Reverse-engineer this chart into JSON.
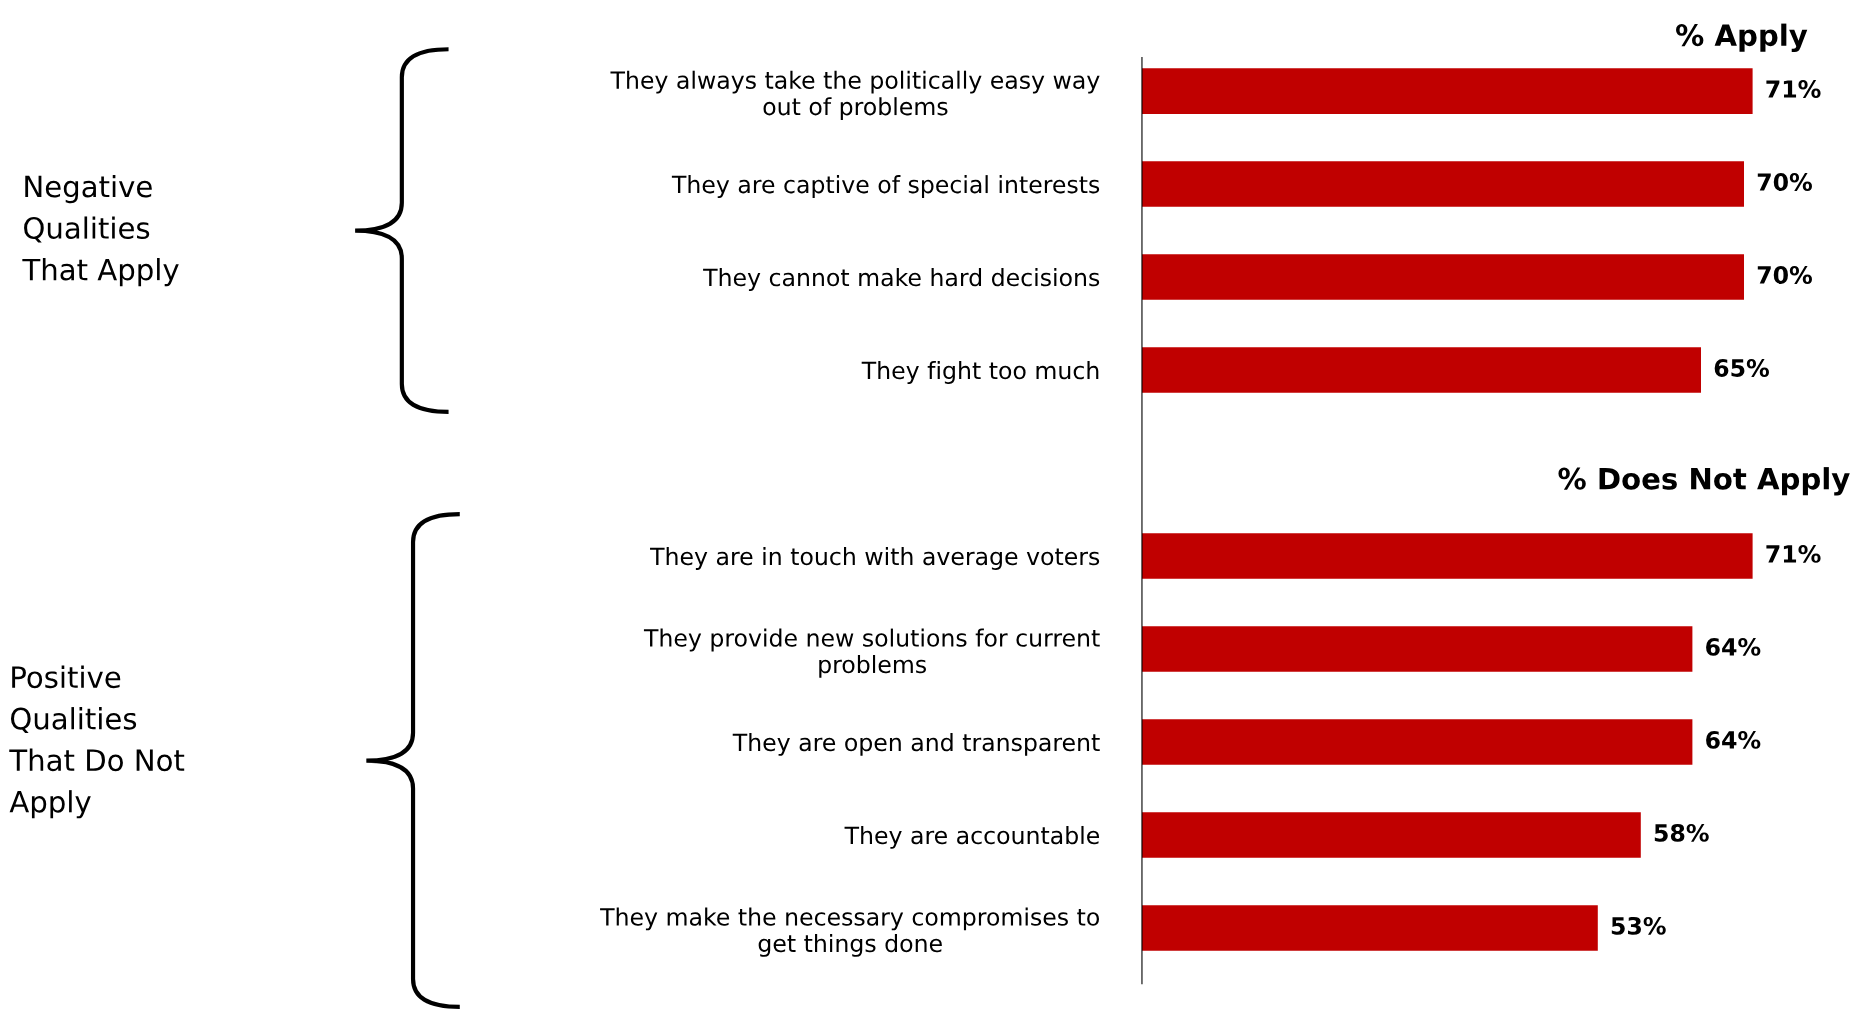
{
  "chart_data": {
    "type": "bar",
    "orientation": "horizontal",
    "categories": [
      "They always take the politically easy way\nout of problems",
      "They are captive of special interests",
      "They cannot make hard decisions",
      "They fight too much",
      null,
      "They are in touch with average voters",
      "They provide new solutions for current\nproblems",
      "They are open and transparent",
      "They are accountable",
      "They make the necessary compromises to\nget things done"
    ],
    "values": [
      71,
      70,
      70,
      65,
      null,
      71,
      64,
      64,
      58,
      53
    ],
    "value_labels": [
      "71%",
      "70%",
      "70%",
      "65%",
      null,
      "71%",
      "64%",
      "64%",
      "58%",
      "53%"
    ],
    "color": "#c00000",
    "annotations": [
      "% Apply",
      "% Does Not Apply",
      "Negative\nQualities\nThat Apply",
      "Positive\nQualities\nThat Do Not\nApply"
    ],
    "grid": false,
    "legend": false
  }
}
